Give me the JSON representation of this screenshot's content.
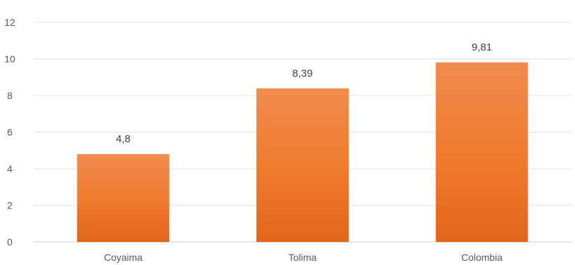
{
  "chart_data": {
    "type": "bar",
    "title": "",
    "xlabel": "",
    "ylabel": "",
    "categories": [
      "Coyaima",
      "Tolima",
      "Colombia"
    ],
    "values": [
      4.8,
      8.39,
      9.81
    ],
    "data_labels": [
      "4,8",
      "8,39",
      "9,81"
    ],
    "ylim": [
      0,
      12
    ],
    "yticks": [
      0,
      2,
      4,
      6,
      8,
      10,
      12
    ],
    "grid": true,
    "legend": "none",
    "bar_color": "#ed7d31",
    "bar_color_dark": "#e0661a"
  }
}
